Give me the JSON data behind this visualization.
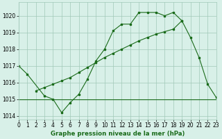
{
  "line1_x": [
    0,
    1,
    3,
    4,
    5,
    6,
    7,
    8,
    9,
    10,
    11,
    12,
    13,
    14,
    15,
    16,
    17,
    18,
    19,
    20,
    21,
    22,
    23
  ],
  "line1_y": [
    1017.0,
    1016.5,
    1015.2,
    1015.0,
    1014.2,
    1014.8,
    1015.3,
    1016.2,
    1017.3,
    1018.0,
    1019.1,
    1019.5,
    1019.5,
    1020.2,
    1020.2,
    1020.2,
    1020.0,
    1020.2,
    1019.7,
    1018.7,
    1017.5,
    1015.9,
    1015.1
  ],
  "line2_x": [
    0,
    23
  ],
  "line2_y": [
    1015.0,
    1015.0
  ],
  "line3_x": [
    2,
    3,
    4,
    5,
    6,
    7,
    8,
    9,
    10,
    11,
    12,
    13,
    14,
    15,
    16,
    17,
    18,
    19
  ],
  "line3_y": [
    1015.5,
    1015.7,
    1015.9,
    1016.1,
    1016.3,
    1016.6,
    1016.9,
    1017.2,
    1017.5,
    1017.75,
    1018.0,
    1018.25,
    1018.5,
    1018.7,
    1018.9,
    1019.05,
    1019.2,
    1019.7
  ],
  "line_color": "#1a6b1a",
  "bg_color": "#d8f0e8",
  "grid_color": "#a0c8b8",
  "xlabel": "Graphe pression niveau de la mer (hPa)",
  "xlim": [
    0,
    23
  ],
  "ylim": [
    1013.8,
    1020.8
  ],
  "yticks": [
    1014,
    1015,
    1016,
    1017,
    1018,
    1019,
    1020
  ],
  "xticks": [
    0,
    1,
    2,
    3,
    4,
    5,
    6,
    7,
    8,
    9,
    10,
    11,
    12,
    13,
    14,
    15,
    16,
    17,
    18,
    19,
    20,
    21,
    22,
    23
  ],
  "tick_fontsize": 5.5,
  "xlabel_fontsize": 6.2
}
